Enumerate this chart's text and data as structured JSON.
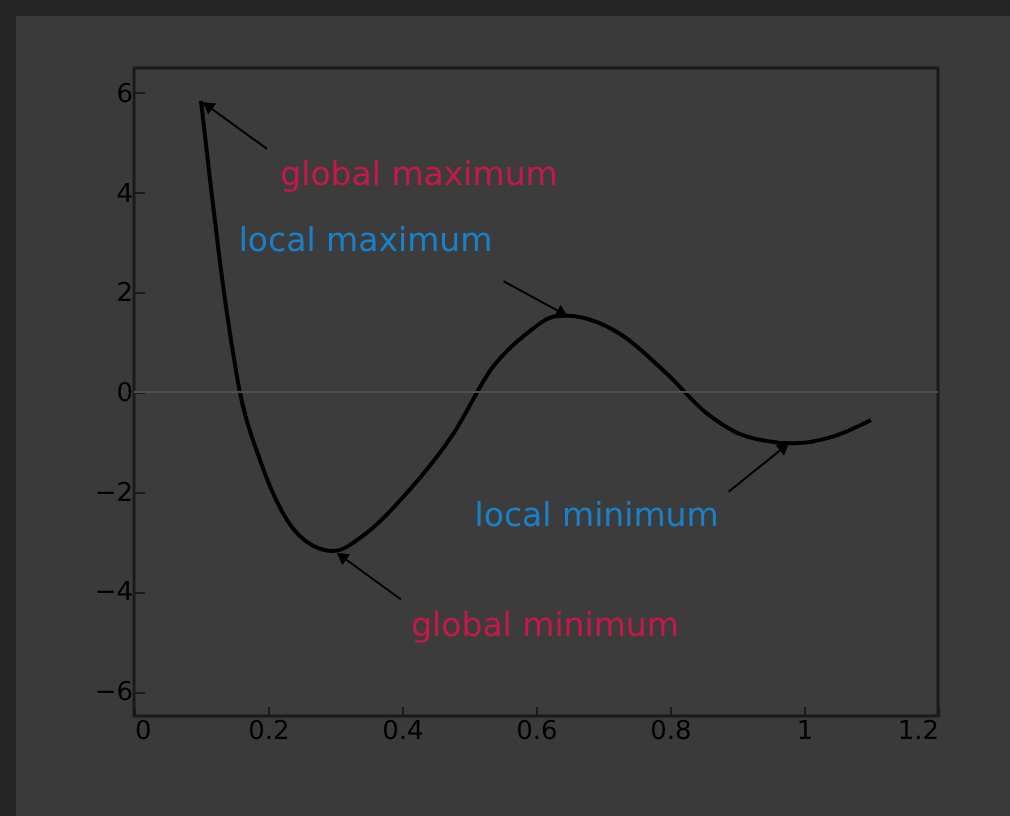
{
  "chart_data": {
    "type": "line",
    "x": [
      0.1,
      0.114,
      0.128,
      0.143,
      0.158,
      0.188,
      0.228,
      0.268,
      0.297,
      0.347,
      0.407,
      0.477,
      0.536,
      0.586,
      0.63,
      0.646,
      0.725,
      0.795,
      0.855,
      0.914,
      0.984,
      1.044,
      1.1
    ],
    "values": [
      5.84,
      4.2,
      2.64,
      1.2,
      0,
      -1.36,
      -2.56,
      -3.09,
      -3.19,
      -2.83,
      -2.03,
      -0.83,
      0.51,
      1.17,
      1.52,
      1.53,
      1.17,
      0.37,
      -0.43,
      -0.89,
      -1.03,
      -0.89,
      -0.56
    ],
    "color": "#000000",
    "xlim": [
      0,
      1.2
    ],
    "ylim": [
      -6.5,
      6.5
    ],
    "xticks": [
      0,
      0.2,
      0.4,
      0.6,
      0.8,
      1,
      1.2
    ],
    "yticks": [
      -6,
      -4,
      -2,
      0,
      2,
      4,
      6
    ],
    "ref_lines": [
      {
        "axis": "y",
        "value": 0,
        "color": "#4e4e4e"
      }
    ],
    "annotations": [
      {
        "text": "global maximum",
        "x": 0.1,
        "y": 5.84
      },
      {
        "text": "local maximum",
        "x": 0.65,
        "y": 1.5
      },
      {
        "text": "local minimum",
        "x": 0.98,
        "y": -1.0
      },
      {
        "text": "global minimum",
        "x": 0.3,
        "y": -3.2
      }
    ]
  }
}
